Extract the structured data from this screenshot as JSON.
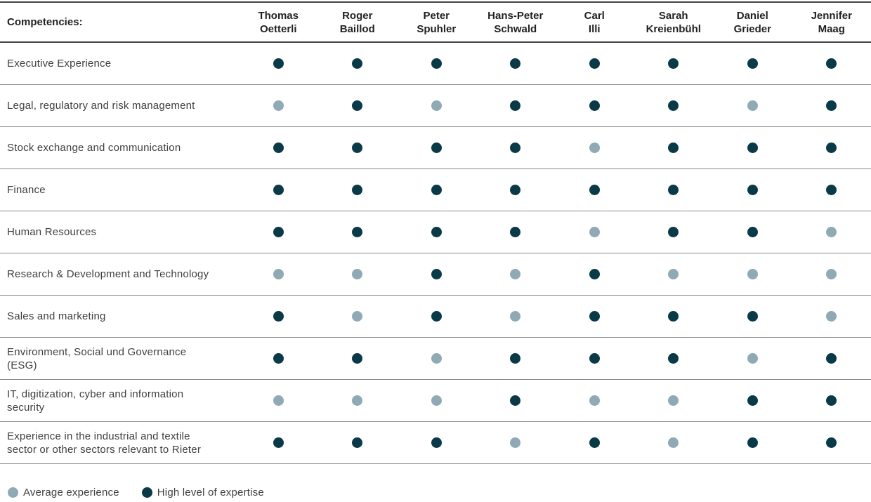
{
  "colors": {
    "high": "#0a3a47",
    "average": "#8fa9b5"
  },
  "table": {
    "competencies_header": "Competencies:",
    "members": [
      {
        "line1": "Thomas",
        "line2": "Oetterli"
      },
      {
        "line1": "Roger",
        "line2": "Baillod"
      },
      {
        "line1": "Peter",
        "line2": "Spuhler"
      },
      {
        "line1": "Hans-Peter",
        "line2": "Schwald"
      },
      {
        "line1": "Carl",
        "line2": "Illi"
      },
      {
        "line1": "Sarah",
        "line2": "Kreienbühl"
      },
      {
        "line1": "Daniel",
        "line2": "Grieder"
      },
      {
        "line1": "Jennifer",
        "line2": "Maag"
      }
    ],
    "rows": [
      {
        "label": [
          "Executive Experience"
        ],
        "levels": [
          "high",
          "high",
          "high",
          "high",
          "high",
          "high",
          "high",
          "high"
        ]
      },
      {
        "label": [
          "Legal, regulatory and risk management"
        ],
        "levels": [
          "average",
          "high",
          "average",
          "high",
          "high",
          "high",
          "average",
          "high"
        ]
      },
      {
        "label": [
          "Stock exchange and communication"
        ],
        "levels": [
          "high",
          "high",
          "high",
          "high",
          "average",
          "high",
          "high",
          "high"
        ]
      },
      {
        "label": [
          "Finance"
        ],
        "levels": [
          "high",
          "high",
          "high",
          "high",
          "high",
          "high",
          "high",
          "high"
        ]
      },
      {
        "label": [
          "Human Resources"
        ],
        "levels": [
          "high",
          "high",
          "high",
          "high",
          "average",
          "high",
          "high",
          "average"
        ]
      },
      {
        "label": [
          "Research & Development and Technology"
        ],
        "levels": [
          "average",
          "average",
          "high",
          "average",
          "high",
          "average",
          "average",
          "average"
        ]
      },
      {
        "label": [
          "Sales and marketing"
        ],
        "levels": [
          "high",
          "average",
          "high",
          "average",
          "high",
          "high",
          "high",
          "average"
        ]
      },
      {
        "label": [
          "Environment, Social und Governance (ESG)"
        ],
        "levels": [
          "high",
          "high",
          "average",
          "high",
          "high",
          "high",
          "average",
          "high"
        ]
      },
      {
        "label": [
          "IT, digitization, cyber and information",
          "security"
        ],
        "levels": [
          "average",
          "average",
          "average",
          "high",
          "average",
          "average",
          "high",
          "high"
        ]
      },
      {
        "label": [
          "Experience in the industrial and textile",
          "sector or other sectors relevant to Rieter"
        ],
        "levels": [
          "high",
          "high",
          "high",
          "average",
          "high",
          "average",
          "high",
          "high"
        ]
      }
    ]
  },
  "legend": {
    "average_label": "Average experience",
    "high_label": "High level of expertise"
  }
}
